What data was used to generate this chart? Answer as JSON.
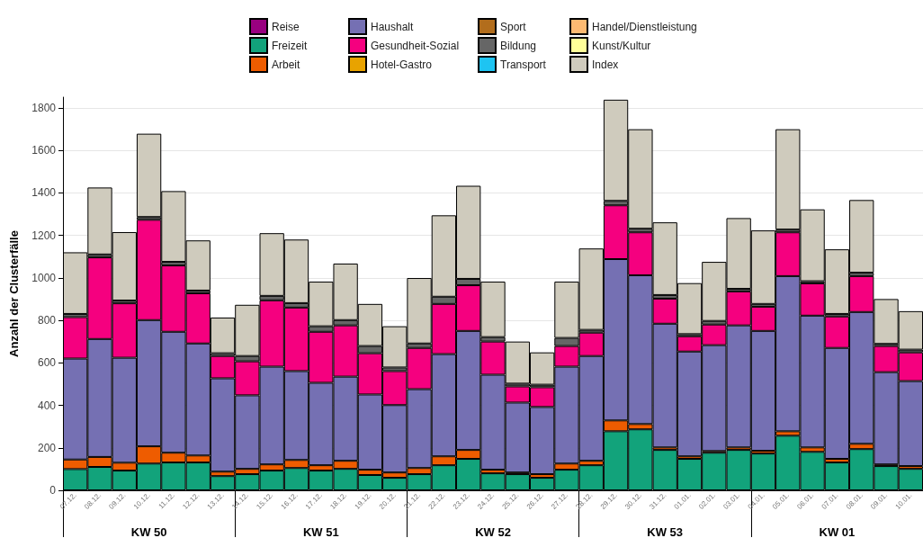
{
  "chart_data": {
    "type": "bar",
    "stacked": true,
    "ylabel": "Anzahl der Clusterfälle",
    "categories": [
      "07.12.",
      "08.12.",
      "09.12.",
      "10.12.",
      "11.12.",
      "12.12.",
      "13.12.",
      "14.12.",
      "15.12.",
      "16.12.",
      "17.12.",
      "18.12.",
      "19.12.",
      "20.12.",
      "21.12.",
      "22.12.",
      "23.12.",
      "24.12.",
      "25.12.",
      "26.12.",
      "27.12.",
      "28.12.",
      "29.12.",
      "30.12.",
      "31.12.",
      "01.01.",
      "02.01.",
      "03.01.",
      "04.01.",
      "05.01.",
      "06.01.",
      "07.01.",
      "08.01.",
      "09.01.",
      "10.01."
    ],
    "series": [
      {
        "name": "Reise",
        "color": "#990080",
        "values": [
          0,
          0,
          0,
          0,
          0,
          0,
          0,
          0,
          0,
          0,
          0,
          0,
          0,
          0,
          0,
          0,
          0,
          0,
          0,
          0,
          0,
          0,
          0,
          0,
          0,
          0,
          0,
          0,
          0,
          0,
          0,
          0,
          0,
          0,
          0
        ]
      },
      {
        "name": "Freizeit",
        "color": "#12a37b",
        "values": [
          100,
          110,
          93,
          126,
          131,
          131,
          67,
          76,
          93,
          105,
          93,
          101,
          72,
          59,
          76,
          118,
          148,
          80,
          76,
          59,
          97,
          118,
          278,
          287,
          190,
          148,
          177,
          190,
          173,
          257,
          181,
          131,
          194,
          114,
          101
        ]
      },
      {
        "name": "Arbeit",
        "color": "#ee5c00",
        "values": [
          45,
          47,
          37,
          81,
          46,
          33,
          21,
          25,
          29,
          38,
          25,
          38,
          25,
          25,
          29,
          42,
          42,
          17,
          8,
          17,
          29,
          21,
          51,
          25,
          12,
          12,
          8,
          12,
          13,
          21,
          21,
          17,
          25,
          8,
          13
        ]
      },
      {
        "name": "Haushalt",
        "color": "#7570b3",
        "values": [
          475,
          555,
          494,
          594,
          569,
          527,
          439,
          346,
          460,
          418,
          388,
          396,
          354,
          317,
          371,
          481,
          560,
          447,
          329,
          316,
          456,
          493,
          759,
          700,
          582,
          493,
          498,
          574,
          564,
          730,
          620,
          522,
          620,
          434,
          400
        ]
      },
      {
        "name": "Gesundheit-Sozial",
        "color": "#f5007f",
        "values": [
          195,
          384,
          256,
          472,
          312,
          236,
          105,
          160,
          312,
          299,
          240,
          241,
          194,
          160,
          194,
          236,
          215,
          156,
          76,
          93,
          97,
          110,
          253,
          202,
          118,
          72,
          97,
          160,
          114,
          206,
          152,
          148,
          169,
          123,
          135
        ]
      },
      {
        "name": "Hotel-Gastro",
        "color": "#e8a300",
        "values": [
          0,
          0,
          0,
          0,
          0,
          0,
          0,
          0,
          0,
          0,
          0,
          0,
          0,
          0,
          0,
          0,
          0,
          0,
          0,
          0,
          0,
          0,
          0,
          0,
          0,
          0,
          0,
          0,
          0,
          0,
          0,
          0,
          0,
          0,
          0
        ]
      },
      {
        "name": "Sport",
        "color": "#b26d1c",
        "values": [
          0,
          0,
          0,
          0,
          0,
          0,
          0,
          0,
          0,
          0,
          0,
          0,
          0,
          0,
          0,
          0,
          0,
          0,
          0,
          0,
          0,
          0,
          0,
          0,
          0,
          0,
          0,
          0,
          0,
          0,
          0,
          0,
          0,
          0,
          0
        ]
      },
      {
        "name": "Bildung",
        "color": "#666666",
        "values": [
          15,
          14,
          13,
          13,
          17,
          13,
          13,
          25,
          21,
          21,
          26,
          25,
          34,
          17,
          21,
          34,
          30,
          21,
          13,
          12,
          38,
          13,
          21,
          17,
          17,
          10,
          17,
          12,
          13,
          13,
          10,
          12,
          16,
          10,
          13
        ]
      },
      {
        "name": "Transport",
        "color": "#1ec4f2",
        "values": [
          0,
          0,
          0,
          0,
          0,
          0,
          0,
          0,
          0,
          0,
          0,
          0,
          0,
          0,
          0,
          0,
          0,
          0,
          0,
          0,
          0,
          0,
          0,
          0,
          0,
          0,
          0,
          0,
          0,
          0,
          0,
          0,
          0,
          0,
          0
        ]
      },
      {
        "name": "Handel/Dienstleistung",
        "color": "#fdba72",
        "values": [
          0,
          0,
          0,
          0,
          0,
          0,
          0,
          0,
          0,
          0,
          0,
          0,
          0,
          0,
          0,
          0,
          0,
          0,
          0,
          0,
          0,
          0,
          0,
          0,
          0,
          0,
          0,
          0,
          0,
          0,
          0,
          0,
          0,
          0,
          0
        ]
      },
      {
        "name": "Kunst/Kultur",
        "color": "#ffff99",
        "values": [
          0,
          0,
          0,
          0,
          0,
          0,
          0,
          0,
          0,
          0,
          0,
          0,
          0,
          0,
          0,
          0,
          0,
          0,
          0,
          0,
          0,
          0,
          0,
          0,
          0,
          0,
          0,
          0,
          0,
          0,
          0,
          0,
          0,
          0,
          0
        ]
      },
      {
        "name": "Index",
        "color": "#cfcbbd",
        "values": [
          290,
          315,
          322,
          392,
          333,
          236,
          168,
          241,
          295,
          299,
          210,
          266,
          198,
          194,
          308,
          383,
          438,
          261,
          198,
          152,
          265,
          383,
          476,
          468,
          342,
          240,
          278,
          333,
          346,
          472,
          338,
          304,
          342,
          211,
          181
        ]
      }
    ],
    "ylim": [
      0,
      1850
    ],
    "yticks": [
      0,
      200,
      400,
      600,
      800,
      1000,
      1200,
      1400,
      1600,
      1800
    ],
    "grid": "y",
    "legend": "top",
    "annotations": [
      "KW 50",
      "KW 51",
      "KW 52",
      "KW 53",
      "KW 01"
    ]
  }
}
